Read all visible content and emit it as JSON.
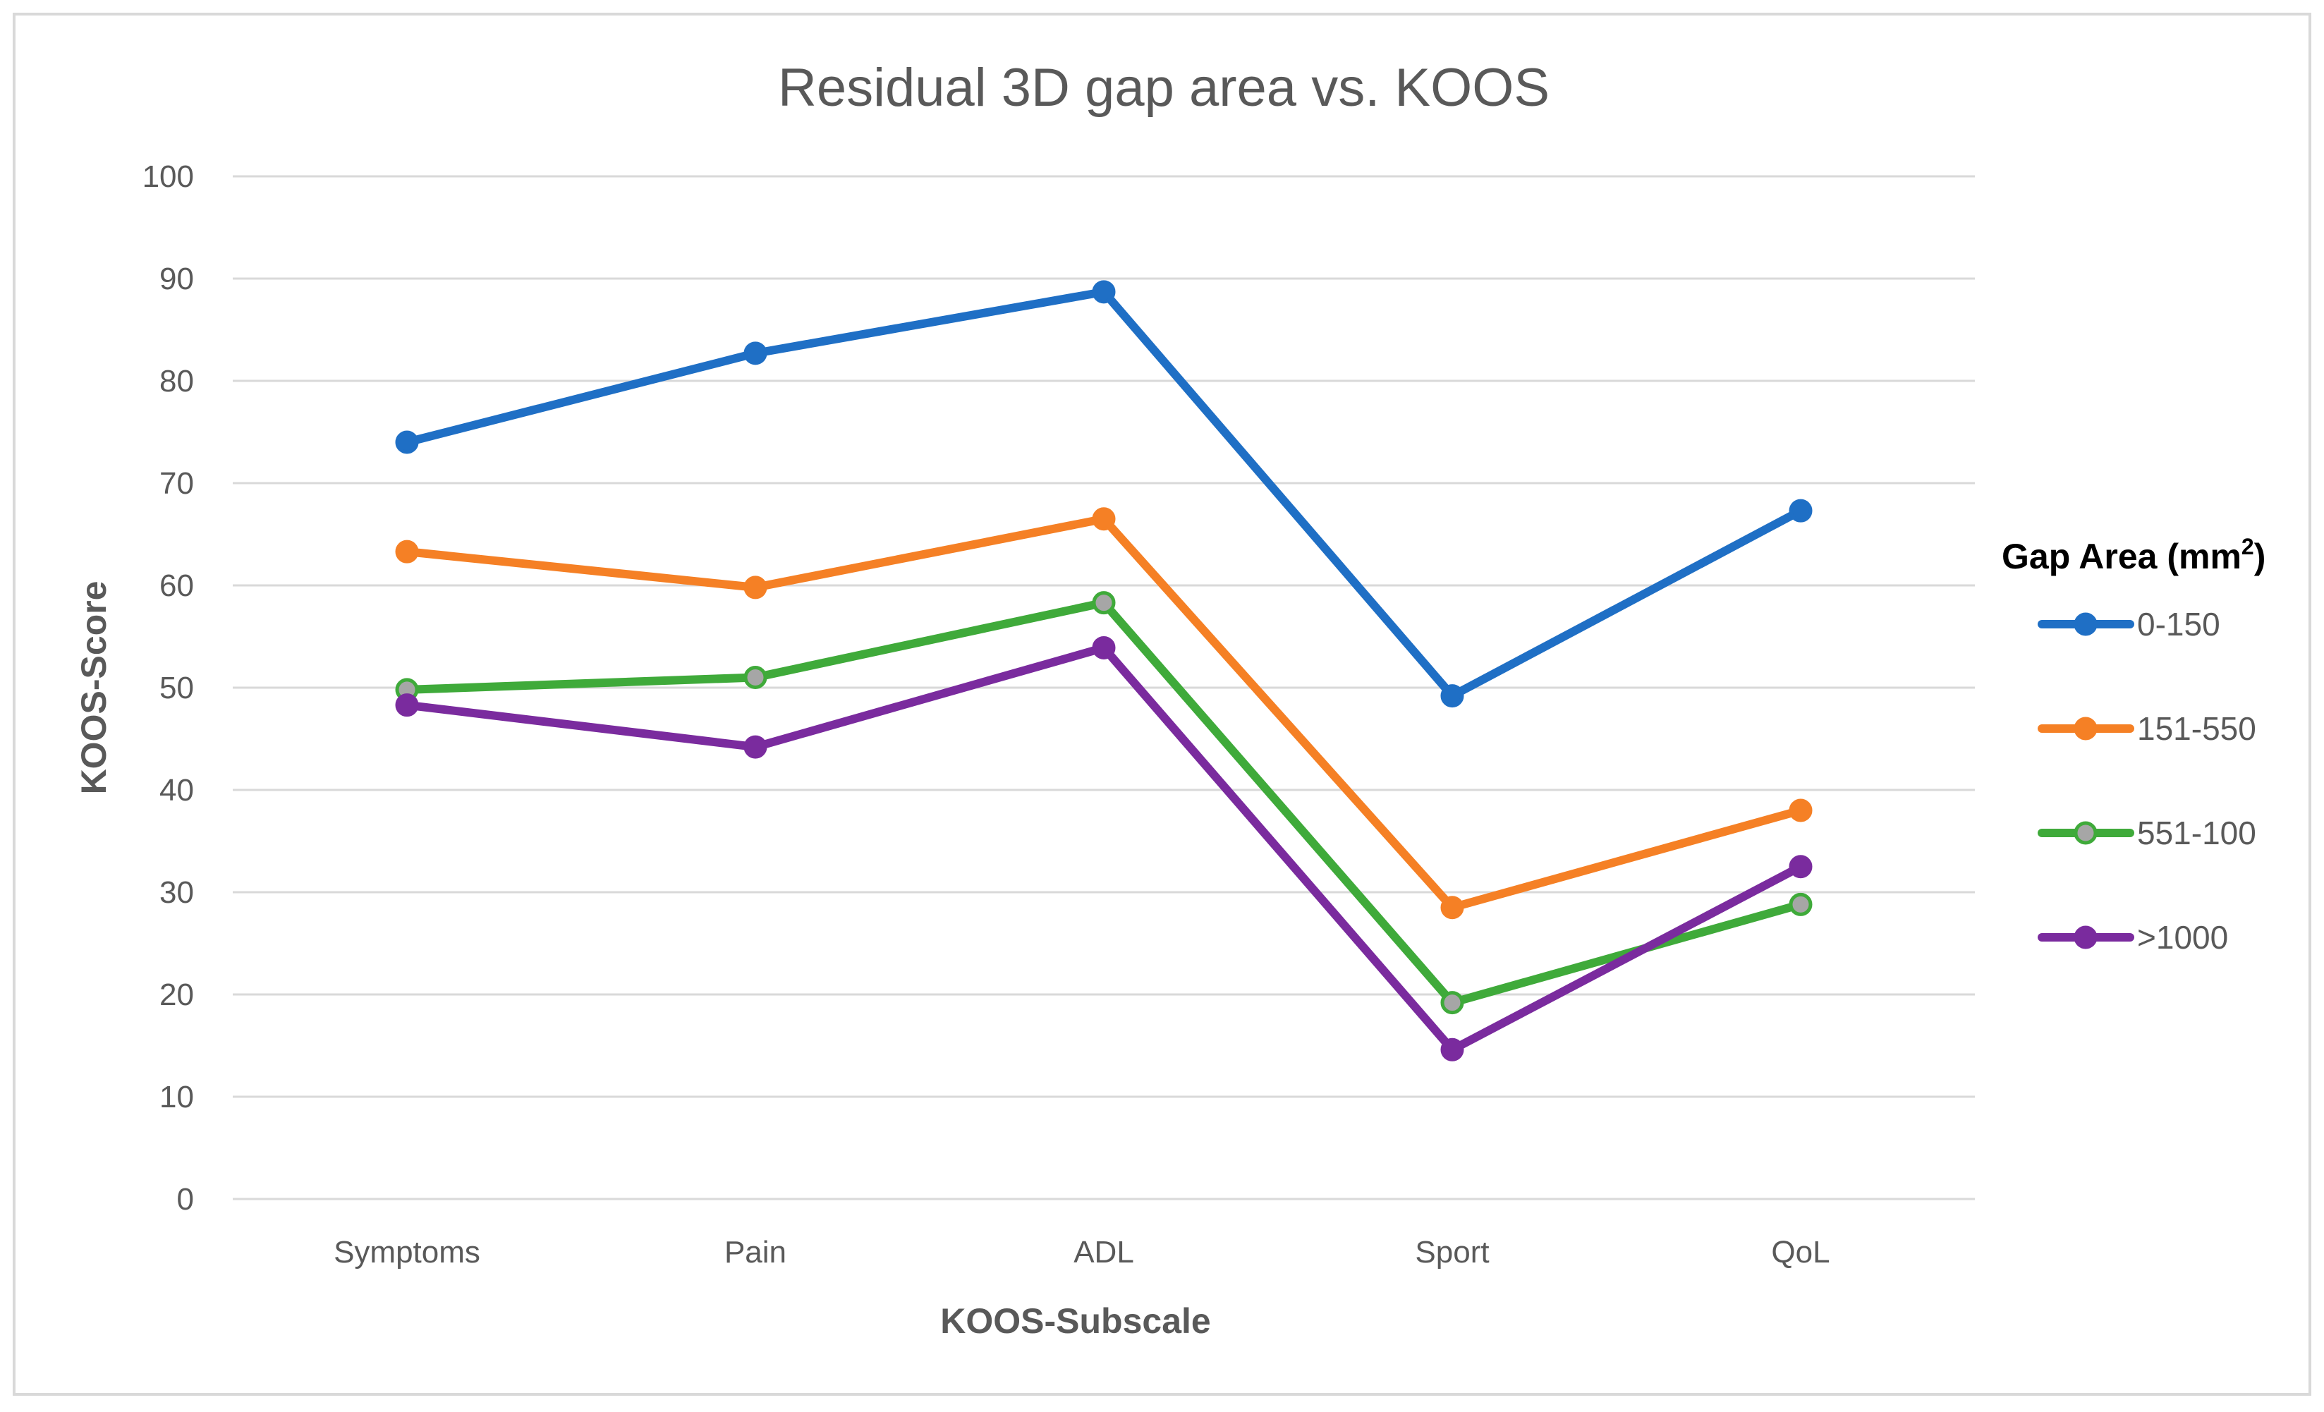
{
  "chart_data": {
    "type": "line",
    "title": "Residual 3D gap area vs. KOOS",
    "xlabel": "KOOS-Subscale",
    "ylabel": "KOOS-Score",
    "categories": [
      "Symptoms",
      "Pain",
      "ADL",
      "Sport",
      "QoL"
    ],
    "ylim": [
      0,
      100
    ],
    "yticks": [
      0,
      10,
      20,
      30,
      40,
      50,
      60,
      70,
      80,
      90,
      100
    ],
    "grid": true,
    "legend": {
      "title": "Gap Area (mm",
      "title_superscript": "2",
      "title_suffix": ")",
      "placement": "right"
    },
    "series": [
      {
        "name": "0-150",
        "color": "#1f6fc5",
        "marker_fill": "#1f6fc5",
        "values": [
          74,
          82.7,
          88.7,
          49.2,
          67.3
        ]
      },
      {
        "name": "151-550",
        "color": "#f58025",
        "marker_fill": "#f58025",
        "values": [
          63.3,
          59.8,
          66.5,
          28.5,
          38
        ]
      },
      {
        "name": "551-100",
        "color": "#3faa3a",
        "marker_fill": "#a6a6a6",
        "values": [
          49.8,
          51,
          58.3,
          19.2,
          28.8
        ]
      },
      {
        "name": ">1000",
        "color": "#7a2b9e",
        "marker_fill": "#7a2b9e",
        "values": [
          48.3,
          44.2,
          53.9,
          14.6,
          32.5
        ]
      }
    ]
  }
}
